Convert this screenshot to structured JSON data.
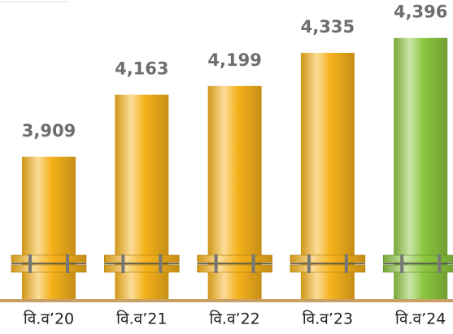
{
  "chart_data": {
    "type": "bar",
    "categories": [
      "वि.व’20",
      "वि.व’21",
      "वि.व’22",
      "वि.व’23",
      "वि.व’24"
    ],
    "values": [
      3909,
      4163,
      4199,
      4335,
      4396
    ],
    "value_labels": [
      "3,909",
      "4,163",
      "4,199",
      "4,335",
      "4,396"
    ],
    "colors": [
      "#f6b21b",
      "#f6b21b",
      "#f6b21b",
      "#f6b21b",
      "#8cc63f"
    ],
    "ylim": [
      3325,
      4400
    ]
  }
}
